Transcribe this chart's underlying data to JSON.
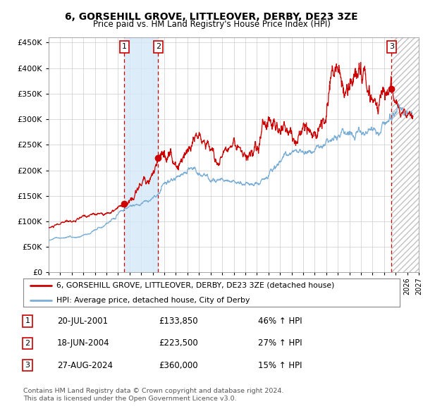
{
  "title": "6, GORSEHILL GROVE, LITTLEOVER, DERBY, DE23 3ZE",
  "subtitle": "Price paid vs. HM Land Registry's House Price Index (HPI)",
  "ylim": [
    0,
    460000
  ],
  "yticks": [
    0,
    50000,
    100000,
    150000,
    200000,
    250000,
    300000,
    350000,
    400000,
    450000
  ],
  "xlim_start": 1995.0,
  "xlim_end": 2027.0,
  "sale1_date": 2001.55,
  "sale1_price": 133850,
  "sale2_date": 2004.46,
  "sale2_price": 223500,
  "sale3_date": 2024.65,
  "sale3_price": 360000,
  "red_line_color": "#cc0000",
  "blue_line_color": "#7aaed6",
  "shade_color": "#d4e8f7",
  "hatch_color": "#bbbbbb",
  "legend_label1": "6, GORSEHILL GROVE, LITTLEOVER, DERBY, DE23 3ZE (detached house)",
  "legend_label2": "HPI: Average price, detached house, City of Derby",
  "table_rows": [
    {
      "num": "1",
      "date": "20-JUL-2001",
      "price": "£133,850",
      "change": "46% ↑ HPI"
    },
    {
      "num": "2",
      "date": "18-JUN-2004",
      "price": "£223,500",
      "change": "27% ↑ HPI"
    },
    {
      "num": "3",
      "date": "27-AUG-2024",
      "price": "£360,000",
      "change": "15% ↑ HPI"
    }
  ],
  "footnote1": "Contains HM Land Registry data © Crown copyright and database right 2024.",
  "footnote2": "This data is licensed under the Open Government Licence v3.0.",
  "background_color": "#ffffff",
  "grid_color": "#cccccc"
}
